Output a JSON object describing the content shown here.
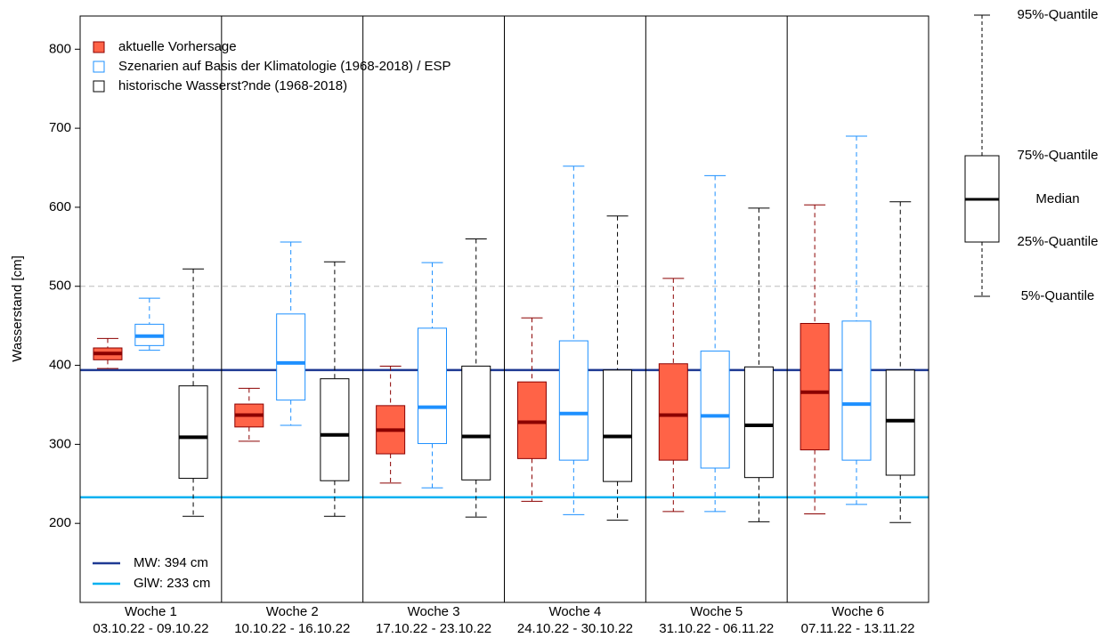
{
  "chart_data": {
    "type": "boxplot",
    "y_label": "Wasserstand [cm]",
    "categories": [
      "Woche 1",
      "Woche 2",
      "Woche 3",
      "Woche 4",
      "Woche 5",
      "Woche 6"
    ],
    "category_ranges": [
      "03.10.22 - 09.10.22",
      "10.10.22 - 16.10.22",
      "17.10.22 - 23.10.22",
      "24.10.22 - 30.10.22",
      "31.10.22 - 06.11.22",
      "07.11.22 - 13.11.22"
    ],
    "ylim": [
      100,
      842
    ],
    "yticks": [
      200,
      300,
      400,
      500,
      600,
      700,
      800
    ],
    "series": [
      {
        "name": "aktuelle Vorhersage",
        "color": "#ff6347",
        "edge_color": "#8b0000",
        "whislo": [
          396,
          304,
          251,
          228,
          215,
          212
        ],
        "q1": [
          407,
          322,
          288,
          282,
          280,
          293
        ],
        "med": [
          415,
          337,
          318,
          328,
          337,
          366
        ],
        "q3": [
          422,
          351,
          349,
          379,
          402,
          453
        ],
        "whishi": [
          434,
          371,
          399,
          460,
          510,
          603
        ]
      },
      {
        "name": "Szenarien auf Basis der Klimatologie (1968-2018) / ESP",
        "color": "#ffffff",
        "edge_color": "#1e90ff",
        "whislo": [
          419,
          324,
          245,
          211,
          215,
          224
        ],
        "q1": [
          425,
          356,
          301,
          280,
          270,
          280
        ],
        "med": [
          437,
          403,
          347,
          339,
          336,
          351
        ],
        "q3": [
          452,
          465,
          447,
          431,
          418,
          456
        ],
        "whishi": [
          485,
          556,
          530,
          652,
          640,
          690
        ]
      },
      {
        "name": "historische Wasserst?nde (1968-2018)",
        "color": "#ffffff",
        "edge_color": "#000000",
        "whislo": [
          209,
          209,
          208,
          204,
          202,
          201
        ],
        "q1": [
          257,
          254,
          255,
          253,
          258,
          261
        ],
        "med": [
          309,
          312,
          310,
          310,
          324,
          330
        ],
        "q3": [
          374,
          383,
          399,
          394,
          398,
          394
        ],
        "whishi": [
          522,
          531,
          560,
          589,
          599,
          607
        ]
      }
    ],
    "reference_lines": [
      {
        "name": "MW: 394 cm",
        "value": 394,
        "color": "#1f3a93"
      },
      {
        "name": "GlW: 233 cm",
        "value": 233,
        "color": "#00b0f0"
      },
      {
        "value": 500,
        "color": "#bbbbbb",
        "style": "dashed"
      }
    ],
    "explanation_labels": [
      "95%-Quantile",
      "75%-Quantile",
      "Median",
      "25%-Quantile",
      "5%-Quantile"
    ]
  }
}
